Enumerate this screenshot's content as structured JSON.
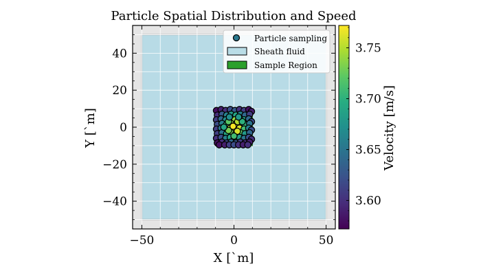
{
  "chart_data": {
    "type": "scatter",
    "title": "Particle Spatial Distribution and Speed",
    "xlabel": "X [`m]",
    "ylabel": "Y [`m]",
    "xlim": [
      -55,
      55
    ],
    "ylim": [
      -55,
      55
    ],
    "xticks": [
      -50,
      0,
      50
    ],
    "xtick_labels": [
      "−50",
      "0",
      "50"
    ],
    "yticks": [
      -40,
      -20,
      0,
      20,
      40
    ],
    "ytick_labels": [
      "−40",
      "−20",
      "0",
      "20",
      "40"
    ],
    "grid": true,
    "legend_position": "top-right",
    "legend": [
      {
        "label": "Particle sampling",
        "kind": "marker",
        "color": "#2a788e"
      },
      {
        "label": "Sheath fluid",
        "kind": "patch",
        "color": "#b9dde7"
      },
      {
        "label": "Sample Region",
        "kind": "patch",
        "color": "#2ca02c"
      }
    ],
    "sheath_fluid": {
      "x": [
        -50,
        50
      ],
      "y": [
        -50,
        50
      ],
      "color": "#add8e6"
    },
    "sample_region": {
      "x": [
        -10,
        10
      ],
      "y": [
        -10,
        10
      ],
      "color": "#2ca02c"
    },
    "colorbar": {
      "label": "Velocity [m/s]",
      "min": 3.572,
      "max": 3.772,
      "ticks": [
        3.6,
        3.65,
        3.7,
        3.75
      ],
      "tick_labels": [
        "3.60",
        "3.65",
        "3.70",
        "3.75"
      ],
      "colormap": "viridis"
    },
    "series": [
      {
        "points": [
          [
            -9.5,
            9.0,
            3.58
          ],
          [
            -7.0,
            9.5,
            3.59
          ],
          [
            -4.5,
            9.0,
            3.6
          ],
          [
            -2.0,
            9.5,
            3.62
          ],
          [
            0.5,
            9.0,
            3.63
          ],
          [
            3.0,
            9.5,
            3.6
          ],
          [
            5.5,
            9.0,
            3.61
          ],
          [
            8.0,
            9.5,
            3.58
          ],
          [
            9.5,
            8.5,
            3.59
          ],
          [
            -9.0,
            6.5,
            3.6
          ],
          [
            -6.5,
            7.0,
            3.63
          ],
          [
            -4.0,
            6.5,
            3.66
          ],
          [
            -1.5,
            7.0,
            3.68
          ],
          [
            1.0,
            6.5,
            3.69
          ],
          [
            3.5,
            7.0,
            3.66
          ],
          [
            6.0,
            6.5,
            3.64
          ],
          [
            8.5,
            7.0,
            3.61
          ],
          [
            -9.5,
            4.0,
            3.61
          ],
          [
            -7.0,
            4.5,
            3.64
          ],
          [
            -4.5,
            4.0,
            3.67
          ],
          [
            -2.0,
            4.5,
            3.71
          ],
          [
            0.5,
            4.0,
            3.74
          ],
          [
            3.0,
            4.5,
            3.72
          ],
          [
            5.5,
            4.0,
            3.69
          ],
          [
            8.0,
            4.5,
            3.64
          ],
          [
            9.5,
            3.0,
            3.62
          ],
          [
            -9.0,
            1.5,
            3.62
          ],
          [
            -6.5,
            2.0,
            3.66
          ],
          [
            -4.0,
            1.5,
            3.7
          ],
          [
            -1.5,
            2.0,
            3.74
          ],
          [
            1.0,
            1.5,
            3.77
          ],
          [
            3.5,
            2.0,
            3.75
          ],
          [
            6.0,
            1.5,
            3.7
          ],
          [
            8.5,
            2.0,
            3.65
          ],
          [
            -9.5,
            -1.0,
            3.61
          ],
          [
            -7.0,
            -0.5,
            3.65
          ],
          [
            -4.5,
            -1.0,
            3.71
          ],
          [
            -2.0,
            -0.5,
            3.75
          ],
          [
            0.5,
            -1.0,
            3.77
          ],
          [
            3.0,
            -0.5,
            3.76
          ],
          [
            5.5,
            -1.0,
            3.71
          ],
          [
            8.0,
            -0.5,
            3.66
          ],
          [
            9.5,
            -1.5,
            3.62
          ],
          [
            -9.0,
            -3.5,
            3.61
          ],
          [
            -6.5,
            -3.0,
            3.65
          ],
          [
            -4.0,
            -3.5,
            3.69
          ],
          [
            -1.5,
            -3.0,
            3.73
          ],
          [
            1.0,
            -3.5,
            3.74
          ],
          [
            3.5,
            -3.0,
            3.72
          ],
          [
            6.0,
            -3.5,
            3.68
          ],
          [
            8.5,
            -3.0,
            3.64
          ],
          [
            -9.5,
            -6.0,
            3.6
          ],
          [
            -7.0,
            -5.5,
            3.62
          ],
          [
            -4.5,
            -6.0,
            3.66
          ],
          [
            -2.0,
            -5.5,
            3.69
          ],
          [
            0.5,
            -6.0,
            3.7
          ],
          [
            3.0,
            -5.5,
            3.68
          ],
          [
            5.5,
            -6.0,
            3.65
          ],
          [
            8.0,
            -5.5,
            3.62
          ],
          [
            9.5,
            -6.5,
            3.6
          ],
          [
            -9.0,
            -8.5,
            3.58
          ],
          [
            -6.5,
            -8.0,
            3.6
          ],
          [
            -4.0,
            -8.5,
            3.62
          ],
          [
            -1.5,
            -8.0,
            3.64
          ],
          [
            1.0,
            -8.5,
            3.63
          ],
          [
            3.5,
            -8.0,
            3.61
          ],
          [
            6.0,
            -8.5,
            3.6
          ],
          [
            8.5,
            -8.0,
            3.59
          ],
          [
            -8.0,
            -9.5,
            3.58
          ],
          [
            -5.0,
            -9.5,
            3.59
          ],
          [
            -2.5,
            -9.5,
            3.61
          ],
          [
            0.0,
            -9.5,
            3.62
          ],
          [
            2.5,
            -9.5,
            3.6
          ],
          [
            5.0,
            -9.5,
            3.59
          ],
          [
            7.5,
            -9.5,
            3.6
          ],
          [
            -3.0,
            3.0,
            3.72
          ],
          [
            2.0,
            3.0,
            3.75
          ],
          [
            -3.0,
            -1.8,
            3.73
          ],
          [
            1.8,
            -2.2,
            3.76
          ],
          [
            -0.5,
            0.5,
            3.77
          ],
          [
            4.5,
            3.0,
            3.7
          ],
          [
            -5.5,
            0.0,
            3.69
          ],
          [
            2.5,
            5.5,
            3.68
          ],
          [
            -2.5,
            5.5,
            3.67
          ],
          [
            0.0,
            -4.8,
            3.71
          ]
        ]
      }
    ]
  }
}
